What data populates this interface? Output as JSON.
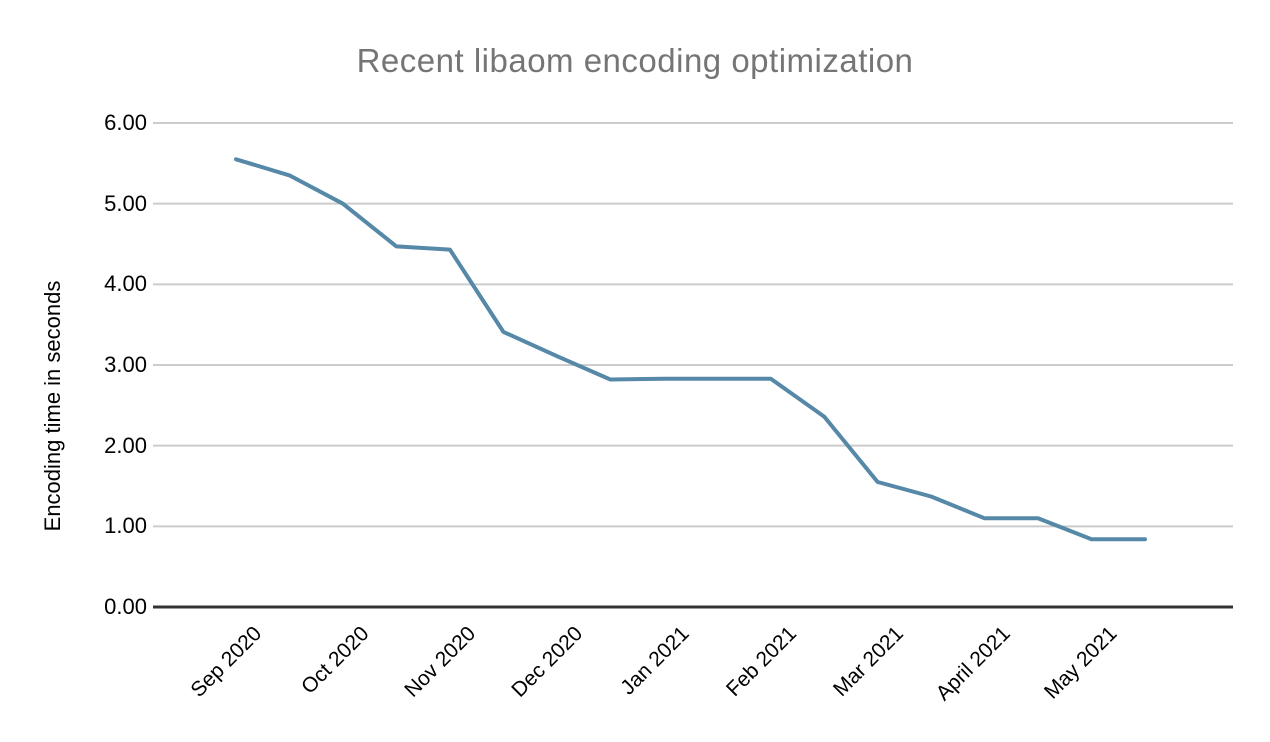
{
  "colors": {
    "background": "#ffffff",
    "title_text": "#757575",
    "axis_label_text": "#000000",
    "line": "#5688a8",
    "gridline": "#cccccc",
    "axis_baseline": "#333333"
  },
  "chart_data": {
    "type": "line",
    "title": "Recent libaom encoding optimization",
    "xlabel": "",
    "ylabel": "Encoding time in seconds",
    "ylim": [
      0,
      6
    ],
    "yticks": [
      0,
      1,
      2,
      3,
      4,
      5,
      6
    ],
    "ytick_labels": [
      "0.00",
      "1.00",
      "2.00",
      "3.00",
      "4.00",
      "5.00",
      "6.00"
    ],
    "categories": [
      "Sep 2020",
      "Oct 2020",
      "Nov 2020",
      "Dec 2020",
      "Jan 2021",
      "Feb 2021",
      "Mar 2021",
      "April 2021",
      "May 2021"
    ],
    "grid": true,
    "legend": "none",
    "line_color": "#5688a8",
    "series": [
      {
        "name": "",
        "x_month_index": [
          0,
          0.5,
          1,
          1.5,
          2,
          2.5,
          3,
          3.5,
          4,
          4.5,
          5,
          5.5,
          6,
          6.5,
          7,
          7.5,
          8,
          8.5
        ],
        "values": [
          5.55,
          5.35,
          5.0,
          4.47,
          4.43,
          3.41,
          3.11,
          2.82,
          2.83,
          2.83,
          2.83,
          2.36,
          1.55,
          1.37,
          1.1,
          1.1,
          0.84,
          0.84
        ]
      }
    ]
  }
}
